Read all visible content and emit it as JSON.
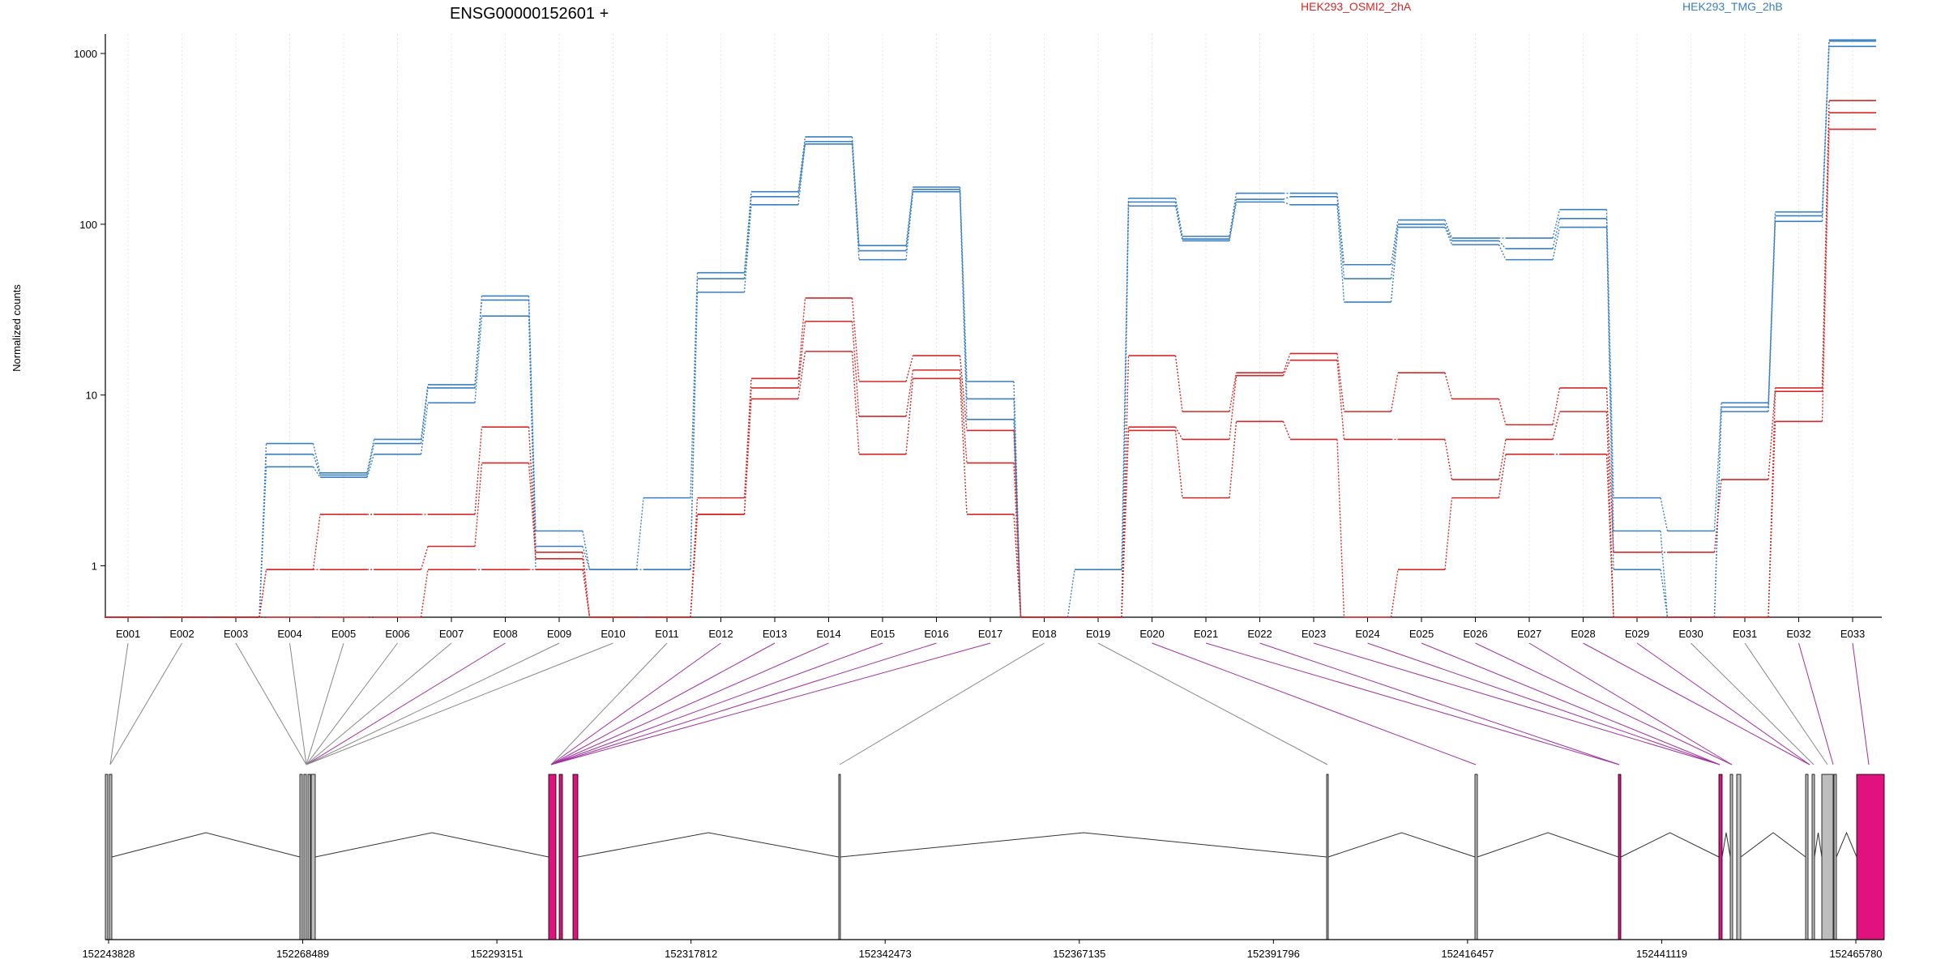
{
  "chart_data": {
    "type": "line",
    "title": "ENSG00000152601 +",
    "ylabel": "Normalized counts",
    "y_scale": "log",
    "ylim": [
      0.5,
      1300
    ],
    "y_ticks": [
      1,
      10,
      100,
      1000
    ],
    "y_tick_labels": [
      "1",
      "10",
      "100",
      "1000"
    ],
    "grid": "vertical dotted lines at each exon bin",
    "legend_position": "top",
    "legend": [
      {
        "label": "HEK293_OSMI2_2hA",
        "color": "#d62728"
      },
      {
        "label": "HEK293_TMG_2hB",
        "color": "#3a7fbf"
      }
    ],
    "categories": [
      "E001",
      "E002",
      "E003",
      "E004",
      "E005",
      "E006",
      "E007",
      "E008",
      "E009",
      "E010",
      "E011",
      "E012",
      "E013",
      "E014",
      "E015",
      "E016",
      "E017",
      "E018",
      "E019",
      "E020",
      "E021",
      "E022",
      "E023",
      "E024",
      "E025",
      "E026",
      "E027",
      "E028",
      "E029",
      "E030",
      "E031",
      "E032",
      "E033"
    ],
    "series": [
      {
        "group": "HEK293_TMG_2hB",
        "color": "#3a7fbf",
        "values": [
          0.5,
          0.5,
          0.5,
          5.2,
          3.5,
          5.5,
          11.5,
          38,
          1.6,
          0.95,
          2.5,
          52,
          155,
          325,
          75,
          165,
          12,
          0.5,
          0.5,
          142,
          85,
          152,
          152,
          58,
          106,
          83,
          83,
          122,
          2.5,
          1.6,
          9,
          118,
          1200
        ]
      },
      {
        "group": "HEK293_TMG_2hB",
        "color": "#3a7fbf",
        "values": [
          0.5,
          0.5,
          0.5,
          4.5,
          3.4,
          5.2,
          11,
          36,
          1.3,
          0.95,
          0.95,
          48,
          145,
          305,
          70,
          160,
          9.5,
          0.5,
          0.95,
          135,
          82,
          140,
          145,
          48,
          100,
          80,
          72,
          108,
          1.6,
          0.5,
          8.5,
          112,
          1180
        ]
      },
      {
        "group": "HEK293_TMG_2hB",
        "color": "#3a7fbf",
        "values": [
          0.5,
          0.5,
          0.5,
          3.8,
          3.3,
          4.5,
          9,
          29,
          0.95,
          0.95,
          0.95,
          40,
          130,
          295,
          62,
          155,
          7.2,
          0.5,
          0.5,
          128,
          80,
          135,
          130,
          35,
          96,
          76,
          62,
          96,
          0.95,
          0.5,
          8,
          104,
          1100
        ]
      },
      {
        "group": "HEK293_OSMI2_2hA",
        "color": "#d62728",
        "values": [
          0.5,
          0.5,
          0.5,
          0.95,
          2,
          2,
          2,
          6.5,
          1.2,
          0.5,
          0.5,
          2.5,
          12.5,
          37,
          12,
          17,
          6.2,
          0.5,
          0.5,
          17,
          8,
          13.5,
          17.5,
          8,
          13.5,
          9.5,
          6.7,
          11,
          1.2,
          1.2,
          3.2,
          11,
          530
        ]
      },
      {
        "group": "HEK293_OSMI2_2hA",
        "color": "#d62728",
        "values": [
          0.5,
          0.5,
          0.5,
          0.95,
          0.95,
          0.95,
          1.3,
          4,
          1.1,
          0.5,
          0.5,
          2,
          11,
          27,
          7.5,
          14,
          4,
          0.5,
          0.5,
          6.5,
          5.5,
          13,
          16,
          5.5,
          5.5,
          3.2,
          5.5,
          8,
          0.5,
          0.5,
          0.5,
          10.5,
          450
        ]
      },
      {
        "group": "HEK293_OSMI2_2hA",
        "color": "#d62728",
        "values": [
          0.5,
          0.5,
          0.5,
          0.5,
          0.5,
          0.5,
          0.95,
          0.95,
          0.95,
          0.5,
          0.5,
          2,
          9.5,
          18,
          4.5,
          12.5,
          2,
          0.5,
          0.5,
          6.2,
          2.5,
          7,
          5.5,
          0.5,
          0.95,
          2.5,
          4.5,
          4.5,
          0.5,
          0.5,
          0.5,
          7,
          360
        ]
      }
    ],
    "gene_coordinate_ticks": [
      "152243828",
      "152268489",
      "152293151",
      "152317812",
      "152342473",
      "152367135",
      "152391796",
      "152416457",
      "152441119",
      "152465780"
    ],
    "exon_colors": {
      "differential": "#e0137e",
      "normal": "#bdbdbd",
      "outline": "#000000",
      "connector_differential": "#a030a0",
      "connector_normal": "#888888"
    }
  }
}
